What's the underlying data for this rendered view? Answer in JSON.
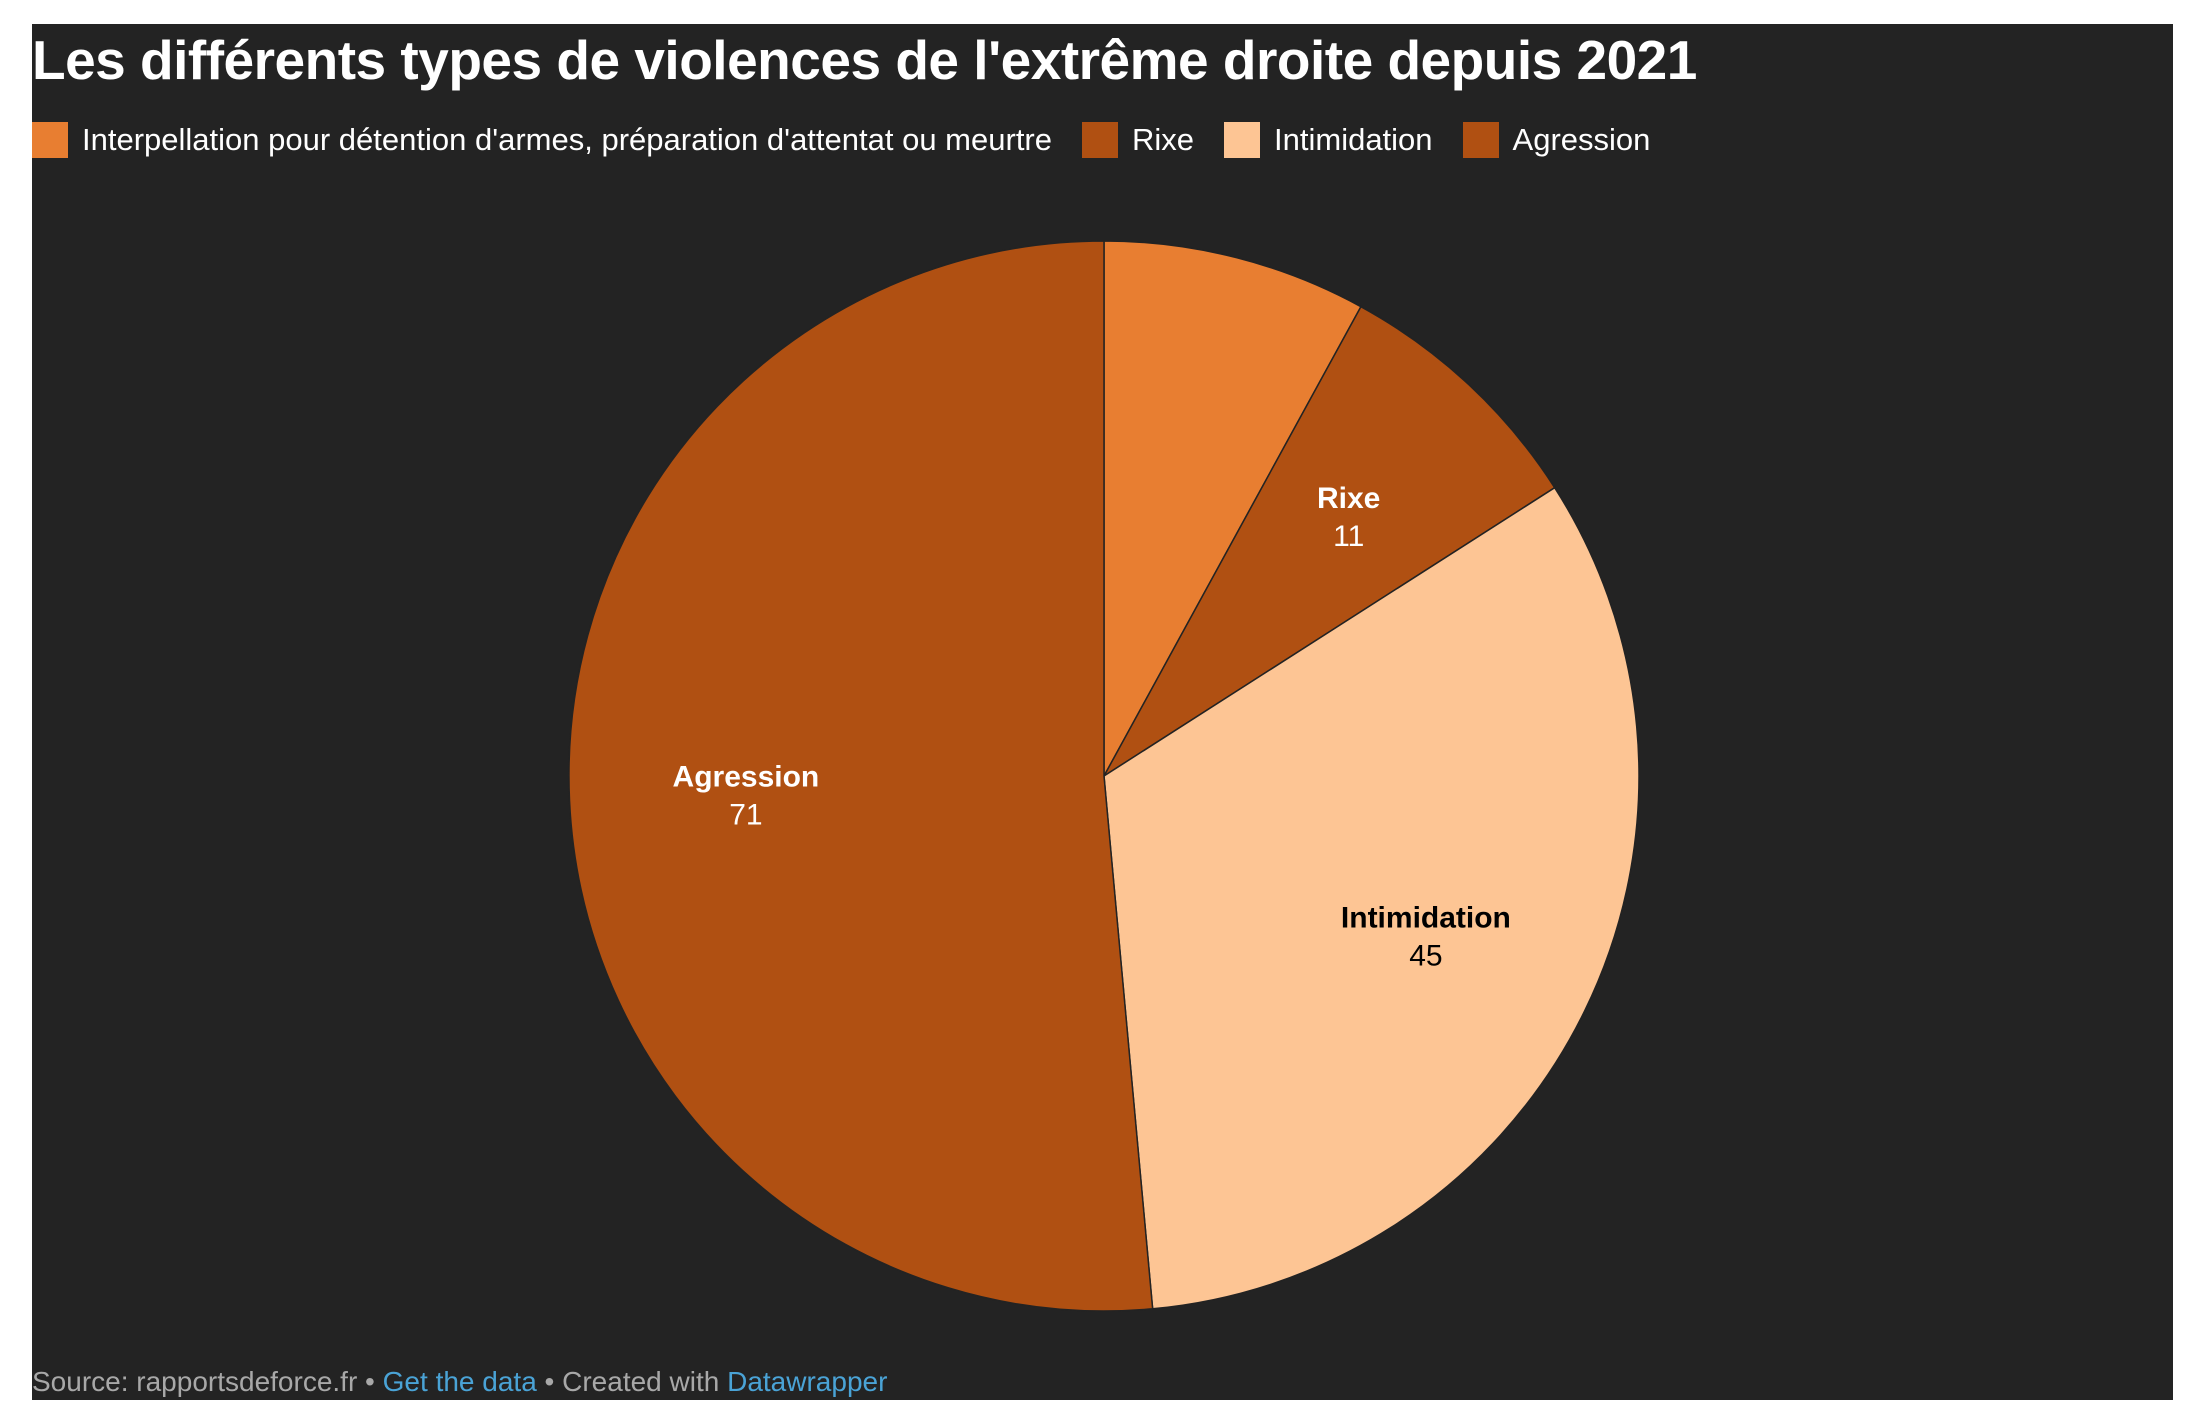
{
  "chart_data": {
    "type": "pie",
    "title": "Les différents types de violences de l'extrême droite depuis 2021",
    "legend_position": "top",
    "categories": [
      "Interpellation pour détention d'armes, préparation d'attentat ou meurtre",
      "Rixe",
      "Intimidation",
      "Agression"
    ],
    "values": [
      11,
      11,
      45,
      71
    ],
    "colors": [
      "#e87e31",
      "#b05012",
      "#fdc594",
      "#b05012"
    ],
    "slices": [
      {
        "name": "Interpellation pour détention d'armes, préparation d'attentat ou meurtre",
        "value": 11,
        "color": "#e87e31",
        "label": "",
        "value_label": "",
        "label_color": "#ffffff"
      },
      {
        "name": "Rixe",
        "value": 11,
        "color": "#b05012",
        "label": "Rixe",
        "value_label": "11",
        "label_color": "#ffffff"
      },
      {
        "name": "Intimidation",
        "value": 45,
        "color": "#fdc594",
        "label": "Intimidation",
        "value_label": "45",
        "label_color": "#000000"
      },
      {
        "name": "Agression",
        "value": 71,
        "color": "#b05012",
        "label": "Agression",
        "value_label": "71",
        "label_color": "#ffffff"
      }
    ]
  },
  "footer": {
    "source": "Source: rapportsdeforce.fr",
    "separator": " • ",
    "get_data": "Get the data",
    "created_with": "Created with ",
    "tool": "Datawrapper"
  }
}
